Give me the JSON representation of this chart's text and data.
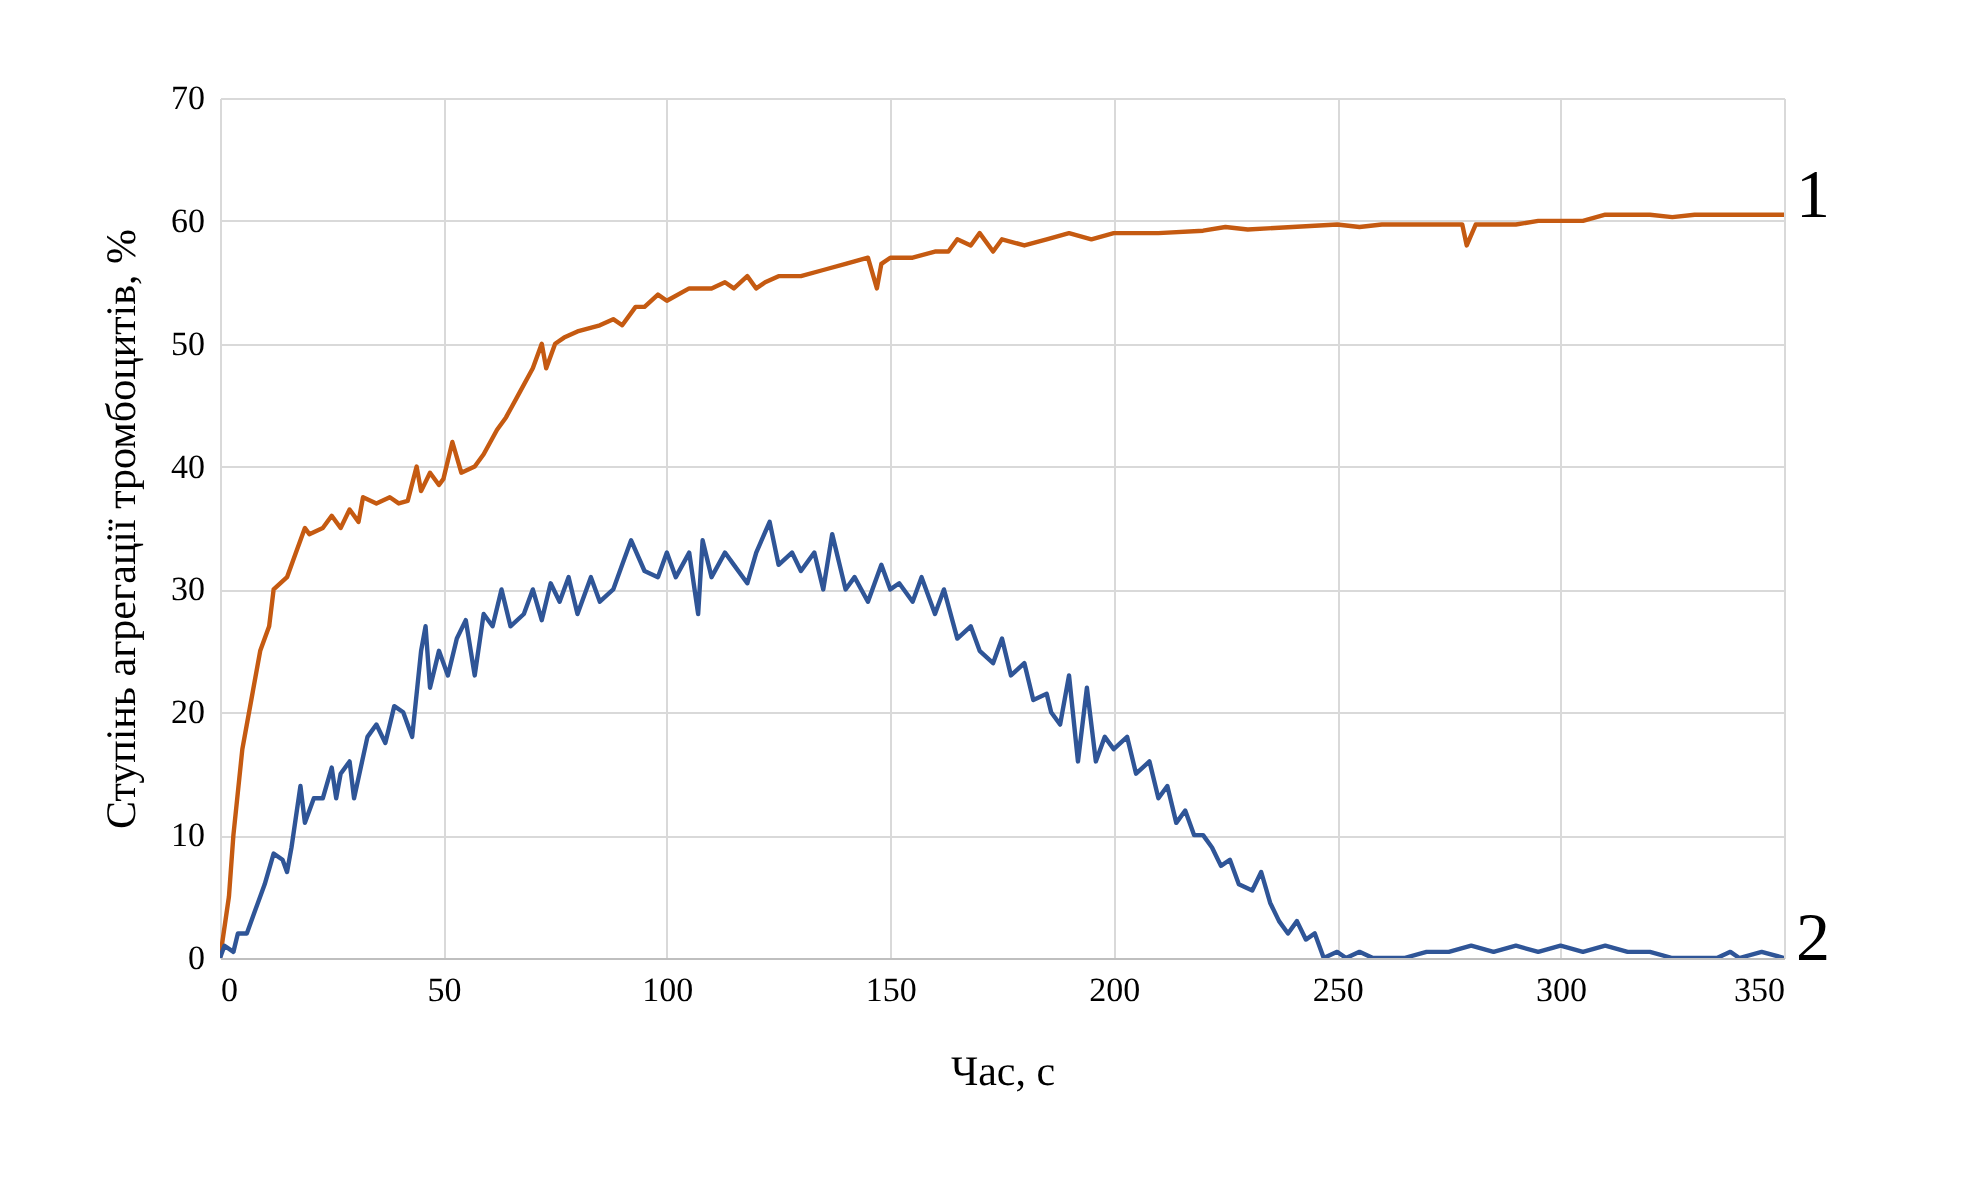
{
  "chart_data": {
    "type": "line",
    "xlabel": "Час, с",
    "ylabel": "Ступінь агрегації тромбоцитів, %",
    "xlim": [
      0,
      350
    ],
    "xticks": [
      0,
      50,
      100,
      150,
      200,
      250,
      300,
      350
    ],
    "ylim": [
      0,
      70
    ],
    "yticks": [
      0,
      10,
      20,
      30,
      40,
      50,
      60,
      70
    ],
    "grid": true,
    "legend": false,
    "series": [
      {
        "name": "1",
        "color": "#c55a11",
        "x": [
          0,
          2,
          3,
          5,
          7,
          9,
          11,
          12,
          15,
          17,
          19,
          20,
          23,
          25,
          27,
          29,
          31,
          32,
          35,
          38,
          40,
          42,
          44,
          45,
          47,
          49,
          50,
          52,
          54,
          57,
          59,
          62,
          64,
          67,
          70,
          72,
          73,
          75,
          77,
          80,
          85,
          88,
          90,
          93,
          95,
          98,
          100,
          105,
          110,
          113,
          115,
          118,
          120,
          122,
          125,
          130,
          135,
          140,
          145,
          147,
          148,
          150,
          155,
          160,
          163,
          165,
          168,
          170,
          173,
          175,
          180,
          185,
          190,
          195,
          200,
          210,
          220,
          225,
          230,
          240,
          250,
          255,
          260,
          270,
          278,
          279,
          281,
          290,
          295,
          300,
          305,
          310,
          320,
          325,
          330,
          350
        ],
        "values": [
          0,
          5,
          10,
          17,
          21,
          25,
          27,
          30,
          31,
          33,
          35,
          34.5,
          35,
          36,
          35,
          36.5,
          35.5,
          37.5,
          37,
          37.5,
          37,
          37.2,
          40,
          38,
          39.5,
          38.5,
          39,
          42,
          39.5,
          40,
          41,
          43,
          44,
          46,
          48,
          50,
          48,
          50,
          50.5,
          51,
          51.5,
          52,
          51.5,
          53,
          53,
          54,
          53.5,
          54.5,
          54.5,
          55,
          54.5,
          55.5,
          54.5,
          55,
          55.5,
          55.5,
          56,
          56.5,
          57,
          54.5,
          56.5,
          57,
          57,
          57.5,
          57.5,
          58.5,
          58,
          59,
          57.5,
          58.5,
          58,
          58.5,
          59,
          58.5,
          59,
          59,
          59.2,
          59.5,
          59.3,
          59.5,
          59.7,
          59.5,
          59.7,
          59.7,
          59.7,
          58,
          59.7,
          59.7,
          60,
          60,
          60,
          60.5,
          60.5,
          60.3,
          60.5,
          60.5
        ]
      },
      {
        "name": "2",
        "color": "#2f5597",
        "x": [
          0,
          1,
          3,
          4,
          6,
          8,
          10,
          12,
          14,
          15,
          16,
          18,
          19,
          21,
          23,
          25,
          26,
          27,
          29,
          30,
          33,
          35,
          37,
          39,
          41,
          43,
          45,
          46,
          47,
          49,
          51,
          53,
          55,
          57,
          59,
          61,
          63,
          65,
          68,
          70,
          72,
          74,
          76,
          78,
          80,
          83,
          85,
          88,
          90,
          92,
          95,
          98,
          100,
          102,
          105,
          107,
          108,
          110,
          113,
          115,
          118,
          120,
          123,
          125,
          128,
          130,
          133,
          135,
          137,
          140,
          142,
          145,
          148,
          150,
          152,
          155,
          157,
          160,
          162,
          165,
          168,
          170,
          173,
          175,
          177,
          180,
          182,
          185,
          186,
          188,
          190,
          192,
          194,
          196,
          198,
          200,
          203,
          205,
          208,
          210,
          212,
          214,
          216,
          218,
          220,
          222,
          224,
          226,
          228,
          231,
          233,
          235,
          237,
          239,
          241,
          243,
          245,
          247,
          250,
          252,
          255,
          258,
          265,
          270,
          275,
          280,
          285,
          290,
          295,
          300,
          305,
          310,
          315,
          320,
          325,
          330,
          335,
          338,
          340,
          345,
          350
        ],
        "values": [
          0,
          1,
          0.5,
          2,
          2,
          4,
          6,
          8.5,
          8,
          7,
          9,
          14,
          11,
          13,
          13,
          15.5,
          13,
          15,
          16,
          13,
          18,
          19,
          17.5,
          20.5,
          20,
          18,
          25,
          27,
          22,
          25,
          23,
          26,
          27.5,
          23,
          28,
          27,
          30,
          27,
          28,
          30,
          27.5,
          30.5,
          29,
          31,
          28,
          31,
          29,
          30,
          32,
          34,
          31.5,
          31,
          33,
          31,
          33,
          28,
          34,
          31,
          33,
          32,
          30.5,
          33,
          35.5,
          32,
          33,
          31.5,
          33,
          30,
          34.5,
          30,
          31,
          29,
          32,
          30,
          30.5,
          29,
          31,
          28,
          30,
          26,
          27,
          25,
          24,
          26,
          23,
          24,
          21,
          21.5,
          20,
          19,
          23,
          16,
          22,
          16,
          18,
          17,
          18,
          15,
          16,
          13,
          14,
          11,
          12,
          10,
          10,
          9,
          7.5,
          8,
          6,
          5.5,
          7,
          4.5,
          3,
          2,
          3,
          1.5,
          2,
          0,
          0.5,
          0,
          0.5,
          0,
          0,
          0.5,
          0.5,
          1,
          0.5,
          1,
          0.5,
          1,
          0.5,
          1,
          0.5,
          0.5,
          0,
          0,
          0,
          0.5,
          0,
          0.5,
          0
        ]
      }
    ]
  }
}
